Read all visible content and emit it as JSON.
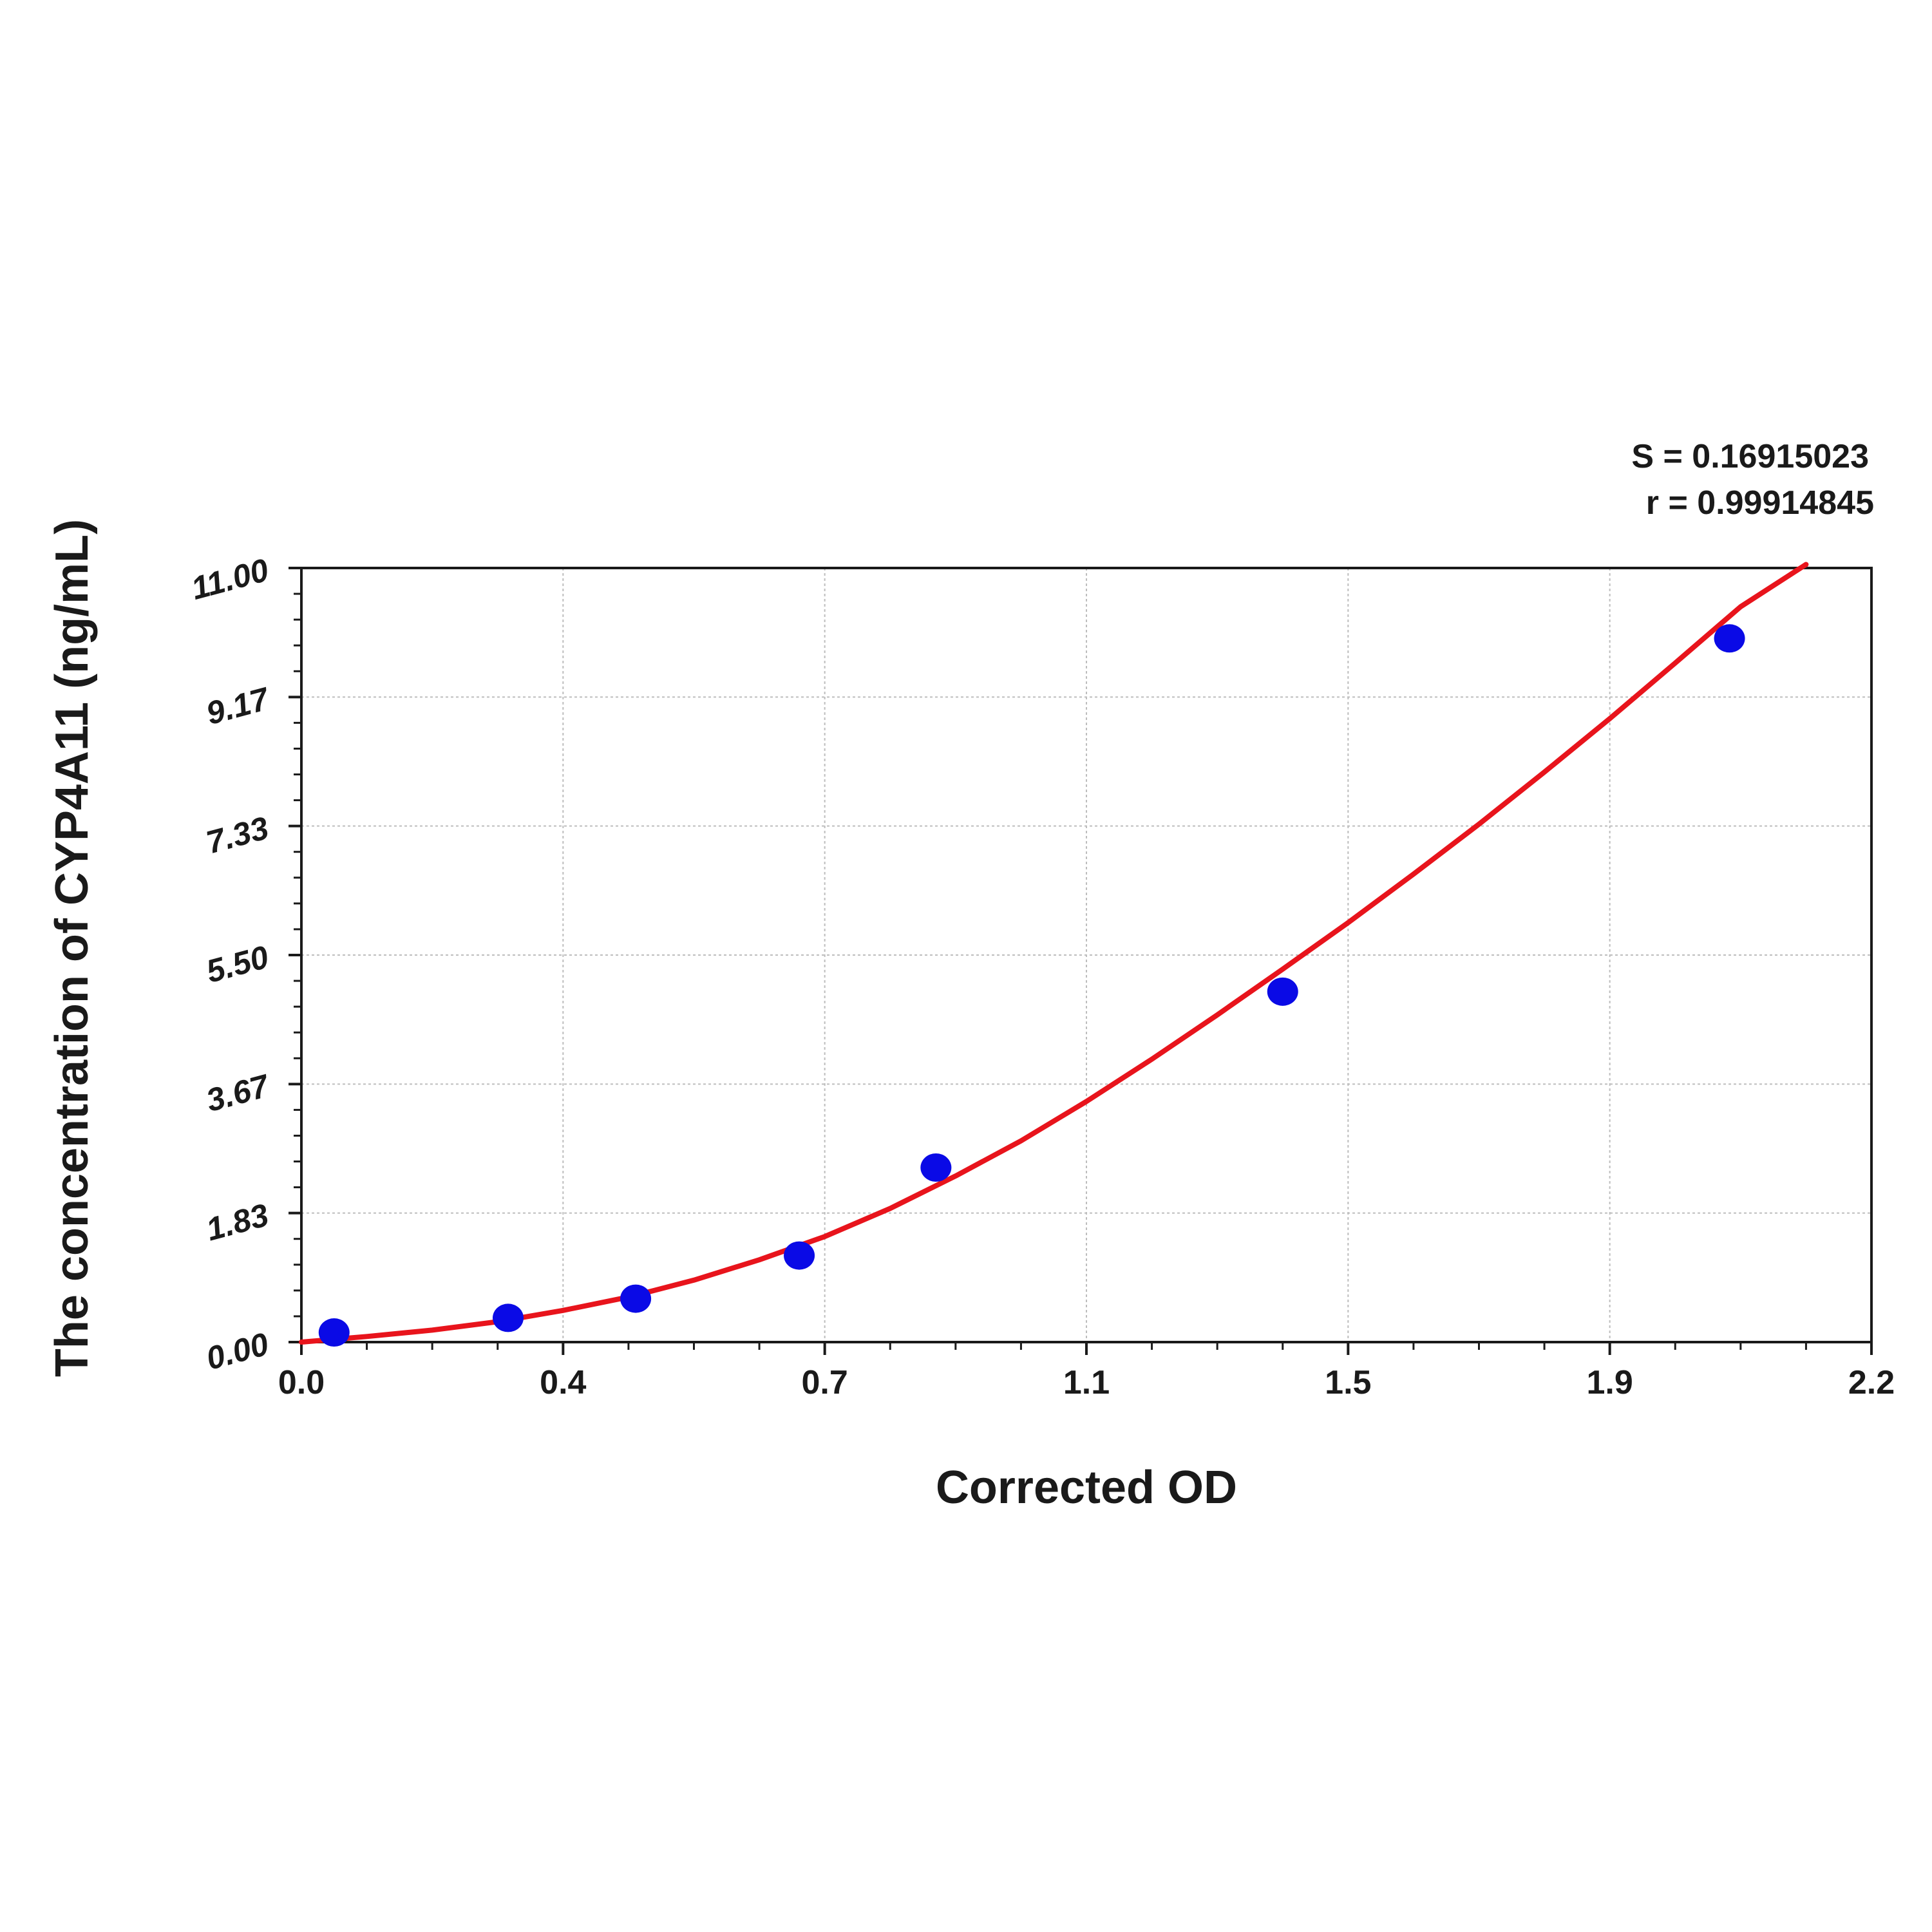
{
  "chart_data": {
    "type": "scatter",
    "xlabel": "Corrected OD",
    "ylabel": "The concentration of CYP4A11 (ng/mL)",
    "x_ticks": [
      "0.0",
      "0.4",
      "0.7",
      "1.1",
      "1.5",
      "1.9",
      "2.2"
    ],
    "y_ticks": [
      "0.00",
      "1.83",
      "3.67",
      "5.50",
      "7.33",
      "9.17",
      "11.00"
    ],
    "xlim": [
      0,
      2.4
    ],
    "ylim": [
      0,
      11
    ],
    "grid": true,
    "stats": [
      "S = 0.16915023",
      "r = 0.99914845"
    ],
    "series": [
      {
        "kind": "points",
        "x": [
          0.05,
          0.316,
          0.511,
          0.761,
          0.97,
          1.5,
          2.183
        ],
        "y": [
          0.137,
          0.344,
          0.617,
          1.23,
          2.48,
          4.98,
          10.0
        ]
      },
      {
        "kind": "fit",
        "x": [
          0,
          0.1,
          0.2,
          0.3,
          0.4,
          0.5,
          0.6,
          0.7,
          0.8,
          0.9,
          1.0,
          1.1,
          1.2,
          1.3,
          1.4,
          1.5,
          1.6,
          1.7,
          1.8,
          1.9,
          2.0,
          2.1,
          2.2,
          2.3
        ],
        "y": [
          0,
          0.08,
          0.17,
          0.29,
          0.45,
          0.64,
          0.88,
          1.17,
          1.5,
          1.9,
          2.36,
          2.86,
          3.42,
          4.02,
          4.65,
          5.3,
          5.96,
          6.65,
          7.36,
          8.1,
          8.86,
          9.65,
          10.45,
          11.1
        ]
      }
    ],
    "colors": {
      "points": "#0a0ae6",
      "fit": "#e8141c",
      "grid": "#bdbdbd",
      "axis": "#1a1a1a"
    }
  }
}
